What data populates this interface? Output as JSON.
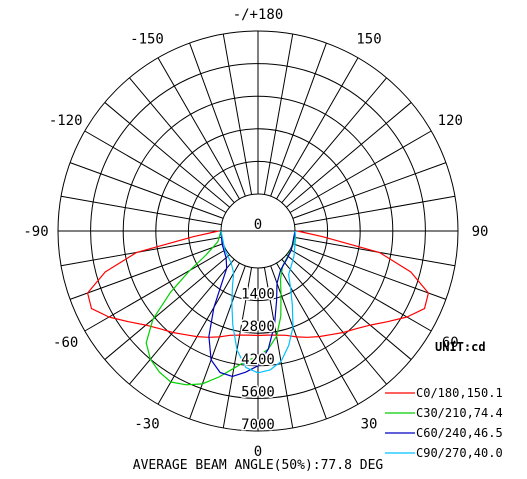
{
  "chart_data": {
    "type": "polar",
    "title": "AVERAGE BEAM ANGLE(50%):77.8 DEG",
    "unit_label": "UNIT:cd",
    "r_max": 7000,
    "r_step": 1400,
    "radial_ticks": [
      {
        "value": 0,
        "label": "0"
      },
      {
        "value": 1400,
        "label": "1400"
      },
      {
        "value": 2800,
        "label": "2800"
      },
      {
        "value": 4200,
        "label": "4200"
      },
      {
        "value": 5600,
        "label": "5600"
      },
      {
        "value": 7000,
        "label": "7000"
      }
    ],
    "angle_step_deg": 10,
    "angle_labels": [
      {
        "angle": 180,
        "label": "-/+180"
      },
      {
        "angle": -150,
        "label": "-150"
      },
      {
        "angle": 150,
        "label": "150"
      },
      {
        "angle": -120,
        "label": "-120"
      },
      {
        "angle": 120,
        "label": "120"
      },
      {
        "angle": -90,
        "label": "-90"
      },
      {
        "angle": 90,
        "label": "90"
      },
      {
        "angle": -60,
        "label": "-60"
      },
      {
        "angle": 60,
        "label": "60"
      },
      {
        "angle": -30,
        "label": "-30"
      },
      {
        "angle": 30,
        "label": "30"
      },
      {
        "angle": 0,
        "label": "0"
      }
    ],
    "angle_units": "degrees from nadir; positive = right side",
    "series": [
      {
        "name": "C0/180,150.1",
        "color": "#ff0000",
        "points": [
          [
            -90,
            100
          ],
          [
            -85,
            1200
          ],
          [
            -80,
            3700
          ],
          [
            -75,
            5200
          ],
          [
            -70,
            6200
          ],
          [
            -65,
            6300
          ],
          [
            -60,
            5800
          ],
          [
            -55,
            5200
          ],
          [
            -50,
            4700
          ],
          [
            -45,
            4350
          ],
          [
            -40,
            4100
          ],
          [
            -35,
            3850
          ],
          [
            -30,
            3650
          ],
          [
            -25,
            3450
          ],
          [
            -20,
            3250
          ],
          [
            -15,
            3050
          ],
          [
            -10,
            2950
          ],
          [
            -5,
            2900
          ],
          [
            0,
            2900
          ],
          [
            5,
            2900
          ],
          [
            10,
            2950
          ],
          [
            15,
            3050
          ],
          [
            20,
            3250
          ],
          [
            25,
            3450
          ],
          [
            30,
            3650
          ],
          [
            35,
            3850
          ],
          [
            40,
            4100
          ],
          [
            45,
            4350
          ],
          [
            50,
            4700
          ],
          [
            55,
            5200
          ],
          [
            60,
            5800
          ],
          [
            65,
            6300
          ],
          [
            70,
            6200
          ],
          [
            75,
            5200
          ],
          [
            80,
            3700
          ],
          [
            85,
            1200
          ],
          [
            90,
            100
          ]
        ]
      },
      {
        "name": "C30/210,74.4",
        "color": "#00d000",
        "points": [
          [
            -90,
            0
          ],
          [
            -75,
            200
          ],
          [
            -65,
            900
          ],
          [
            -60,
            1800
          ],
          [
            -55,
            3000
          ],
          [
            -50,
            4300
          ],
          [
            -45,
            5200
          ],
          [
            -40,
            5600
          ],
          [
            -35,
            5800
          ],
          [
            -30,
            5900
          ],
          [
            -25,
            5700
          ],
          [
            -20,
            5400
          ],
          [
            -15,
            4900
          ],
          [
            -10,
            4400
          ],
          [
            -5,
            4000
          ],
          [
            0,
            3800
          ],
          [
            5,
            3500
          ],
          [
            10,
            3000
          ],
          [
            15,
            2200
          ],
          [
            20,
            1300
          ],
          [
            25,
            700
          ],
          [
            35,
            250
          ],
          [
            50,
            80
          ],
          [
            70,
            40
          ],
          [
            90,
            0
          ]
        ]
      },
      {
        "name": "C60/240,46.5",
        "color": "#0000c0",
        "points": [
          [
            -90,
            0
          ],
          [
            -70,
            50
          ],
          [
            -50,
            200
          ],
          [
            -40,
            500
          ],
          [
            -35,
            1100
          ],
          [
            -30,
            2200
          ],
          [
            -25,
            3400
          ],
          [
            -20,
            4300
          ],
          [
            -15,
            4700
          ],
          [
            -10,
            4750
          ],
          [
            -5,
            4500
          ],
          [
            0,
            4200
          ],
          [
            5,
            3500
          ],
          [
            10,
            2500
          ],
          [
            15,
            1500
          ],
          [
            20,
            800
          ],
          [
            30,
            350
          ],
          [
            45,
            150
          ],
          [
            60,
            60
          ],
          [
            90,
            0
          ]
        ]
      },
      {
        "name": "C90/270,40.0",
        "color": "#00c0ff",
        "points": [
          [
            -90,
            0
          ],
          [
            -60,
            50
          ],
          [
            -40,
            200
          ],
          [
            -30,
            500
          ],
          [
            -25,
            1000
          ],
          [
            -20,
            1700
          ],
          [
            -15,
            2600
          ],
          [
            -10,
            3600
          ],
          [
            -5,
            4300
          ],
          [
            0,
            4500
          ],
          [
            5,
            4400
          ],
          [
            10,
            4100
          ],
          [
            15,
            3500
          ],
          [
            20,
            2800
          ],
          [
            25,
            1900
          ],
          [
            30,
            1200
          ],
          [
            35,
            700
          ],
          [
            45,
            450
          ],
          [
            55,
            300
          ],
          [
            65,
            150
          ],
          [
            80,
            50
          ],
          [
            90,
            0
          ]
        ]
      }
    ],
    "grid": true,
    "legend_position": "bottom-right"
  }
}
